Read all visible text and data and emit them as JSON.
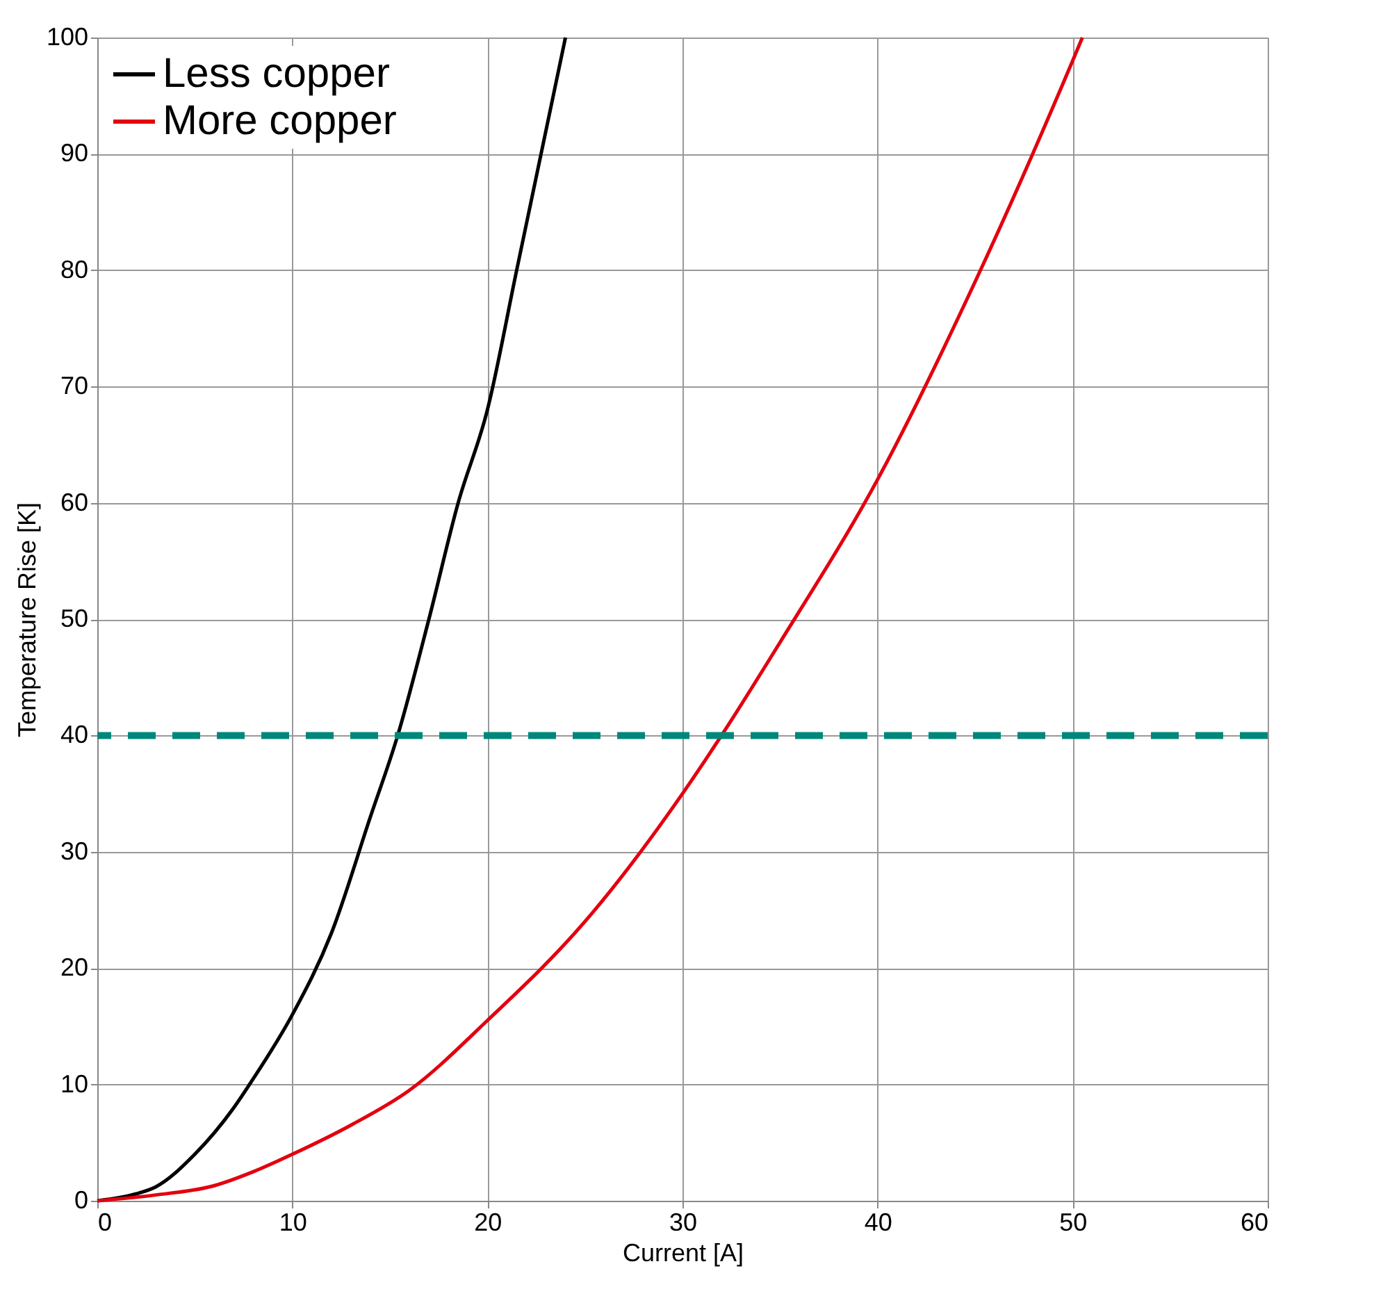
{
  "chart_data": {
    "type": "line",
    "xlabel": "Current [A]",
    "ylabel": "Temperature Rise [K]",
    "xlim": [
      0,
      60
    ],
    "xticks": [
      0,
      10,
      20,
      30,
      40,
      50,
      60
    ],
    "ylim": [
      0,
      100
    ],
    "yticks": [
      0,
      10,
      20,
      30,
      40,
      50,
      60,
      70,
      80,
      90,
      100
    ],
    "grid": true,
    "legend": "top left",
    "marker": "none",
    "line_style": "solid",
    "series": [
      {
        "name": "Less copper",
        "color": "#000000",
        "x": [
          0,
          2,
          3,
          5,
          7,
          8,
          10,
          12,
          14,
          15.4,
          17,
          18.5,
          20,
          21.5,
          23,
          24
        ],
        "values": [
          0,
          0.6,
          1.2,
          4,
          8,
          10.5,
          16,
          23,
          33,
          40,
          50,
          60,
          68,
          80,
          92,
          100
        ]
      },
      {
        "name": "More copper",
        "color": "#e3000f",
        "x": [
          0,
          3,
          6,
          8,
          10,
          13,
          16,
          20,
          25,
          30,
          32,
          35,
          40,
          45,
          50,
          50.5
        ],
        "values": [
          0,
          0.5,
          1.3,
          2.5,
          4,
          6.5,
          9.5,
          15.5,
          24,
          35,
          40,
          48,
          62,
          79,
          98,
          100
        ]
      }
    ],
    "ref_lines": [
      {
        "axis": "y",
        "value": 40,
        "color": "#00877a",
        "line_style": "dashed"
      }
    ]
  }
}
